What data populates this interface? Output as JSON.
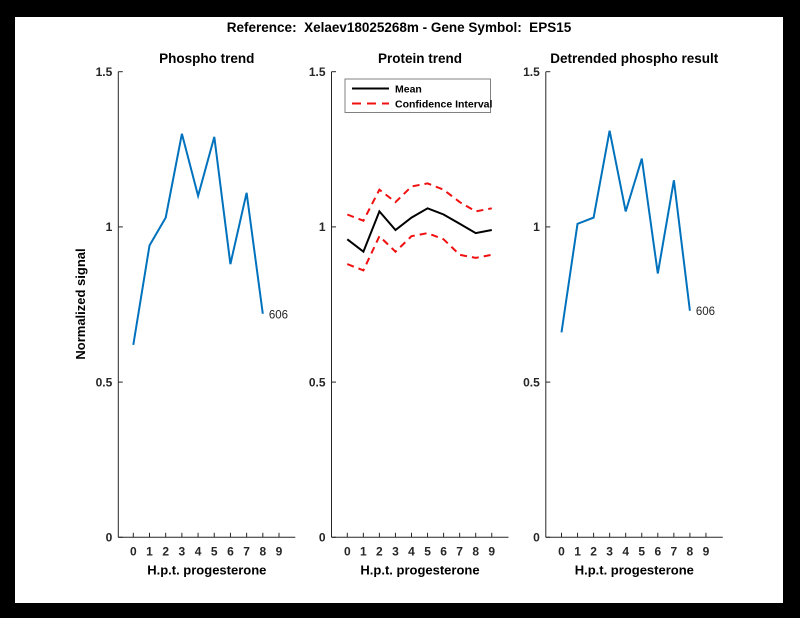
{
  "figure": {
    "title": "Reference:  Xelaev18025268m - Gene Symbol:  EPS15",
    "background": "#ffffff",
    "border_color": "#000000"
  },
  "colors": {
    "line_blue": "#0072BD",
    "line_red": "#F01010",
    "line_black": "#000000",
    "axis": "#262626",
    "legend_border": "#808080"
  },
  "chart_data": [
    {
      "type": "line",
      "title": "Phospho trend",
      "xlabel": "H.p.t. progesterone",
      "ylabel": "Normalized signal",
      "xlim": [
        -1,
        10
      ],
      "ylim": [
        0,
        1.5
      ],
      "grid": false,
      "xticks": [
        "0",
        "1",
        "2",
        "3",
        "4",
        "5",
        "6",
        "7",
        "8",
        "9"
      ],
      "yticks": [
        "0",
        "0.5",
        "1",
        "1.5"
      ],
      "series": [
        {
          "name": "phospho-signal",
          "color": "#0072BD",
          "dash": false,
          "x": [
            0,
            1,
            2,
            3,
            4,
            5,
            6,
            7,
            8
          ],
          "y": [
            0.62,
            0.94,
            1.03,
            1.3,
            1.1,
            1.29,
            0.88,
            1.11,
            0.72
          ]
        }
      ],
      "annotations": [
        {
          "text": "606",
          "x": 8,
          "y": 0.72
        }
      ]
    },
    {
      "type": "line",
      "title": "Protein trend",
      "xlabel": "H.p.t. progesterone",
      "ylabel": "",
      "xlim": [
        -1,
        10
      ],
      "ylim": [
        0,
        1.5
      ],
      "grid": false,
      "xticks": [
        "0",
        "1",
        "2",
        "3",
        "4",
        "5",
        "6",
        "7",
        "8",
        "9"
      ],
      "yticks": [
        "0",
        "0.5",
        "1",
        "1.5"
      ],
      "legend": {
        "position": "top-left",
        "entries": [
          {
            "label": "Mean",
            "color": "#000000",
            "dash": false
          },
          {
            "label": "Confidence Interval",
            "color": "#F01010",
            "dash": true
          }
        ]
      },
      "series": [
        {
          "name": "protein-mean",
          "color": "#000000",
          "dash": false,
          "x": [
            0,
            1,
            2,
            3,
            4,
            5,
            6,
            7,
            8,
            9
          ],
          "y": [
            0.96,
            0.92,
            1.05,
            0.99,
            1.03,
            1.06,
            1.04,
            1.01,
            0.98,
            0.99
          ]
        },
        {
          "name": "confidence-upper",
          "color": "#F01010",
          "dash": true,
          "x": [
            0,
            1,
            2,
            3,
            4,
            5,
            6,
            7,
            8,
            9
          ],
          "y": [
            1.04,
            1.02,
            1.12,
            1.08,
            1.13,
            1.14,
            1.12,
            1.08,
            1.05,
            1.06
          ]
        },
        {
          "name": "confidence-lower",
          "color": "#F01010",
          "dash": true,
          "x": [
            0,
            1,
            2,
            3,
            4,
            5,
            6,
            7,
            8,
            9
          ],
          "y": [
            0.88,
            0.86,
            0.97,
            0.92,
            0.97,
            0.98,
            0.96,
            0.91,
            0.9,
            0.91
          ]
        }
      ],
      "annotations": []
    },
    {
      "type": "line",
      "title": "Detrended phospho result",
      "xlabel": "H.p.t. progesterone",
      "ylabel": "",
      "xlim": [
        -1,
        10
      ],
      "ylim": [
        0,
        1.5
      ],
      "grid": false,
      "xticks": [
        "0",
        "1",
        "2",
        "3",
        "4",
        "5",
        "6",
        "7",
        "8",
        "9"
      ],
      "yticks": [
        "0",
        "0.5",
        "1",
        "1.5"
      ],
      "series": [
        {
          "name": "detrended-phospho",
          "color": "#0072BD",
          "dash": false,
          "x": [
            0,
            1,
            2,
            3,
            4,
            5,
            6,
            7,
            8
          ],
          "y": [
            0.66,
            1.01,
            1.03,
            1.31,
            1.05,
            1.22,
            0.85,
            1.15,
            0.73
          ]
        }
      ],
      "annotations": [
        {
          "text": "606",
          "x": 8,
          "y": 0.73
        }
      ]
    }
  ]
}
